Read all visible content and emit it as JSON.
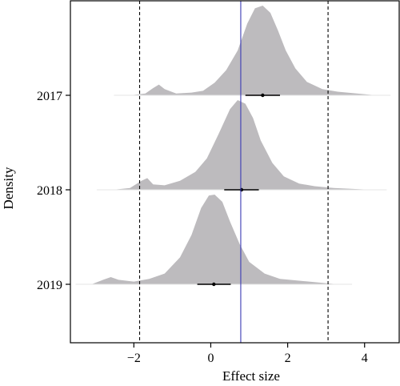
{
  "chart_data": {
    "type": "ridgeline",
    "xlabel": "Effect size",
    "ylabel": "Density",
    "xlim": [
      -3.65,
      4.9
    ],
    "x_ticks": [
      -2,
      0,
      2,
      4
    ],
    "x_tick_labels": [
      "−2",
      "0",
      "2",
      "4"
    ],
    "reference_lines": [
      {
        "kind": "dashed",
        "x": -1.85,
        "color": "#000000"
      },
      {
        "kind": "solid",
        "x": 0.78,
        "color": "#3b3bb3"
      },
      {
        "kind": "dashed",
        "x": 3.05,
        "color": "#000000"
      }
    ],
    "fill_color": "#bdbbbe",
    "series": [
      {
        "name": "2017",
        "x": [
          -2.1,
          -1.7,
          -1.5,
          -1.35,
          -1.2,
          -0.9,
          -0.5,
          -0.2,
          0.1,
          0.4,
          0.7,
          0.95,
          1.15,
          1.35,
          1.55,
          1.75,
          1.95,
          2.2,
          2.5,
          2.9,
          3.3,
          3.8,
          4.3
        ],
        "density": [
          0.0,
          0.02,
          0.08,
          0.12,
          0.07,
          0.02,
          0.03,
          0.05,
          0.14,
          0.28,
          0.5,
          0.8,
          0.97,
          1.0,
          0.92,
          0.72,
          0.5,
          0.3,
          0.15,
          0.07,
          0.04,
          0.02,
          0.0
        ],
        "mean": 1.35,
        "interval": [
          0.9,
          1.8
        ]
      },
      {
        "name": "2018",
        "x": [
          -2.55,
          -2.1,
          -1.8,
          -1.65,
          -1.5,
          -1.2,
          -0.8,
          -0.4,
          -0.1,
          0.2,
          0.5,
          0.7,
          0.9,
          1.1,
          1.3,
          1.6,
          1.9,
          2.3,
          2.7,
          3.2,
          3.7,
          4.2
        ],
        "density": [
          0.0,
          0.02,
          0.1,
          0.13,
          0.06,
          0.05,
          0.1,
          0.2,
          0.35,
          0.62,
          0.9,
          1.0,
          0.96,
          0.8,
          0.55,
          0.3,
          0.15,
          0.07,
          0.04,
          0.02,
          0.01,
          0.0
        ],
        "mean": 0.8,
        "interval": [
          0.35,
          1.25
        ]
      },
      {
        "name": "2019",
        "x": [
          -3.1,
          -2.8,
          -2.6,
          -2.4,
          -2.0,
          -1.6,
          -1.2,
          -0.8,
          -0.5,
          -0.25,
          -0.05,
          0.1,
          0.3,
          0.5,
          0.75,
          1.0,
          1.4,
          1.8,
          2.3,
          2.8,
          3.3
        ],
        "density": [
          0.0,
          0.05,
          0.08,
          0.05,
          0.03,
          0.06,
          0.12,
          0.3,
          0.55,
          0.85,
          0.99,
          1.0,
          0.92,
          0.7,
          0.45,
          0.25,
          0.12,
          0.06,
          0.04,
          0.02,
          0.0
        ],
        "mean": 0.08,
        "interval": [
          -0.35,
          0.52
        ]
      }
    ]
  }
}
